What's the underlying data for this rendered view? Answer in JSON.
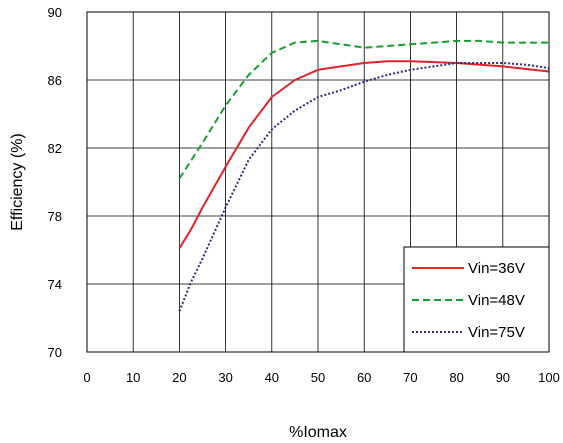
{
  "chart_data": {
    "type": "line",
    "xlabel": "%Iomax",
    "ylabel": "Efficiency (%)",
    "xlim": [
      0,
      100
    ],
    "ylim": [
      70,
      90
    ],
    "xticks": [
      0,
      10,
      20,
      30,
      40,
      50,
      60,
      70,
      80,
      90,
      100
    ],
    "yticks": [
      70,
      74,
      78,
      82,
      86,
      90
    ],
    "grid": true,
    "legend_position": "bottom-right",
    "series": [
      {
        "name": "Vin=36V",
        "color": "#e0242b",
        "dash": "solid",
        "x": [
          20,
          22.5,
          25,
          30,
          35,
          40,
          45,
          50,
          55,
          60,
          65,
          70,
          80,
          90,
          100
        ],
        "y": [
          76.1,
          77.2,
          78.5,
          80.9,
          83.2,
          85.0,
          86.0,
          86.6,
          86.8,
          87.0,
          87.1,
          87.1,
          87.0,
          86.8,
          86.5
        ]
      },
      {
        "name": "Vin=48V",
        "color": "#1a9e2e",
        "dash": "dashed",
        "x": [
          20,
          25,
          30,
          35,
          40,
          45,
          50,
          55,
          60,
          65,
          70,
          75,
          80,
          85,
          90,
          95,
          100
        ],
        "y": [
          80.2,
          82.3,
          84.5,
          86.3,
          87.6,
          88.2,
          88.3,
          88.1,
          87.9,
          88.0,
          88.1,
          88.2,
          88.3,
          88.3,
          88.2,
          88.2,
          88.2
        ]
      },
      {
        "name": "Vin=75V",
        "color": "#2c2c86",
        "dash": "dotted",
        "x": [
          20,
          22.5,
          25,
          30,
          35,
          40,
          45,
          50,
          55,
          60,
          65,
          70,
          75,
          80,
          85,
          90,
          95,
          100
        ],
        "y": [
          72.4,
          74.1,
          75.5,
          78.5,
          81.3,
          83.1,
          84.2,
          85.0,
          85.4,
          85.9,
          86.3,
          86.6,
          86.8,
          87.0,
          87.0,
          87.0,
          86.9,
          86.7
        ]
      }
    ]
  }
}
